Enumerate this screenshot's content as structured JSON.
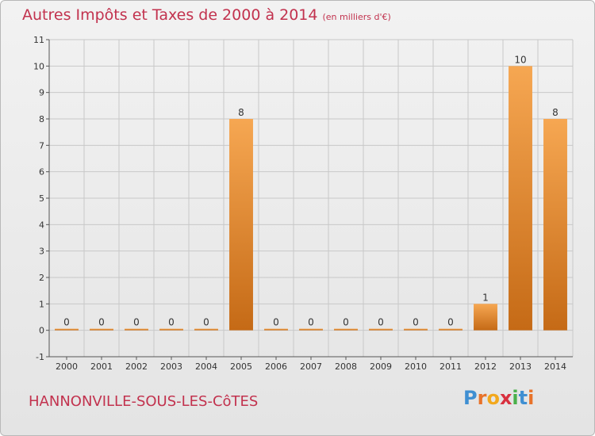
{
  "header": {
    "title": "Autres Impôts et Taxes de 2000 à 2014",
    "unit": "(en milliers d'€)"
  },
  "footer": {
    "commune": "HANNONVILLE-SOUS-LES-CôTES",
    "logo_letters": [
      {
        "char": "P",
        "color": "#3f8fd2"
      },
      {
        "char": "r",
        "color": "#e8732a"
      },
      {
        "char": "o",
        "color": "#f2a81d"
      },
      {
        "char": "x",
        "color": "#d8313f"
      },
      {
        "char": "i",
        "color": "#4ab04a"
      },
      {
        "char": "t",
        "color": "#3f8fd2"
      },
      {
        "char": "i",
        "color": "#e8732a"
      }
    ]
  },
  "colors": {
    "bar_top": "#f6a752",
    "bar_bottom": "#c56a16",
    "grid": "#c8c8c8",
    "title": "#c2324e"
  },
  "chart_data": {
    "type": "bar",
    "categories": [
      "2000",
      "2001",
      "2002",
      "2003",
      "2004",
      "2005",
      "2006",
      "2007",
      "2008",
      "2009",
      "2010",
      "2011",
      "2012",
      "2013",
      "2014"
    ],
    "values": [
      0,
      0,
      0,
      0,
      0,
      8,
      0,
      0,
      0,
      0,
      0,
      0,
      1,
      10,
      8
    ],
    "data_labels": [
      "0",
      "0",
      "0",
      "0",
      "0",
      "8",
      "0",
      "0",
      "0",
      "0",
      "0",
      "0",
      "1",
      "10",
      "8"
    ],
    "ylim": [
      -1,
      11
    ],
    "y_ticks": [
      -1,
      0,
      1,
      2,
      3,
      4,
      5,
      6,
      7,
      8,
      9,
      10,
      11
    ],
    "y_tick_labels": [
      "-1",
      "0",
      "1",
      "2",
      "3",
      "4",
      "5",
      "6",
      "7",
      "8",
      "9",
      "10",
      "11"
    ],
    "grid": true
  }
}
